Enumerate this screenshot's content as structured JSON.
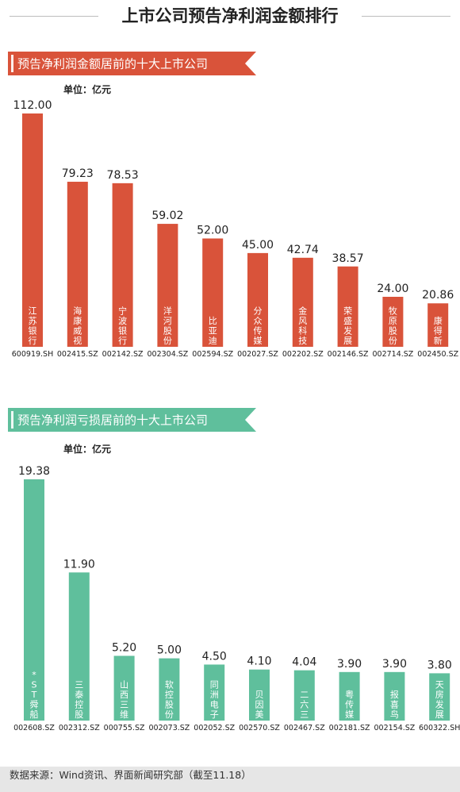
{
  "page": {
    "title": "上市公司预告净利润金额排行",
    "footer": "数据来源：Wind资讯、界面新闻研究部（截至11.18）"
  },
  "colors": {
    "profit": "#d9533a",
    "loss": "#5fbf9c",
    "footer_bg": "#e6e6e6"
  },
  "chart_data": [
    {
      "type": "bar",
      "title": "预告净利润金额居前的十大上市公司",
      "unit": "单位：亿元",
      "categories": [
        "600919.SH",
        "002415.SZ",
        "002142.SZ",
        "002304.SZ",
        "002594.SZ",
        "002027.SZ",
        "002202.SZ",
        "002146.SZ",
        "002714.SZ",
        "002450.SZ"
      ],
      "names": [
        "江苏银行",
        "海康威视",
        "宁波银行",
        "洋河股份",
        "比亚迪",
        "分众传媒",
        "金风科技",
        "荣盛发展",
        "牧原股份",
        "康得新"
      ],
      "values": [
        112.0,
        79.23,
        78.53,
        59.02,
        52.0,
        45.0,
        42.74,
        38.57,
        24.0,
        20.86
      ],
      "value_labels": [
        "112.00",
        "79.23",
        "78.53",
        "59.02",
        "52.00",
        "45.00",
        "42.74",
        "38.57",
        "24.00",
        "20.86"
      ],
      "ylim": [
        0,
        112
      ]
    },
    {
      "type": "bar",
      "title": "预告净利润亏损居前的十大上市公司",
      "unit": "单位：亿元",
      "categories": [
        "002608.SZ",
        "002312.SZ",
        "000755.SZ",
        "002073.SZ",
        "002052.SZ",
        "002570.SZ",
        "002467.SZ",
        "002181.SZ",
        "002154.SZ",
        "600322.SH"
      ],
      "names": [
        "*ST舜船",
        "三泰控股",
        "山西三维",
        "软控股份",
        "同洲电子",
        "贝因美",
        "二六三",
        "粤传媒",
        "报喜鸟",
        "天房发展"
      ],
      "values": [
        19.38,
        11.9,
        5.2,
        5.0,
        4.5,
        4.1,
        4.04,
        3.9,
        3.9,
        3.8
      ],
      "value_labels": [
        "19.38",
        "11.90",
        "5.20",
        "5.00",
        "4.50",
        "4.10",
        "4.04",
        "3.90",
        "3.90",
        "3.80"
      ],
      "ylim": [
        0,
        19.38
      ]
    }
  ]
}
